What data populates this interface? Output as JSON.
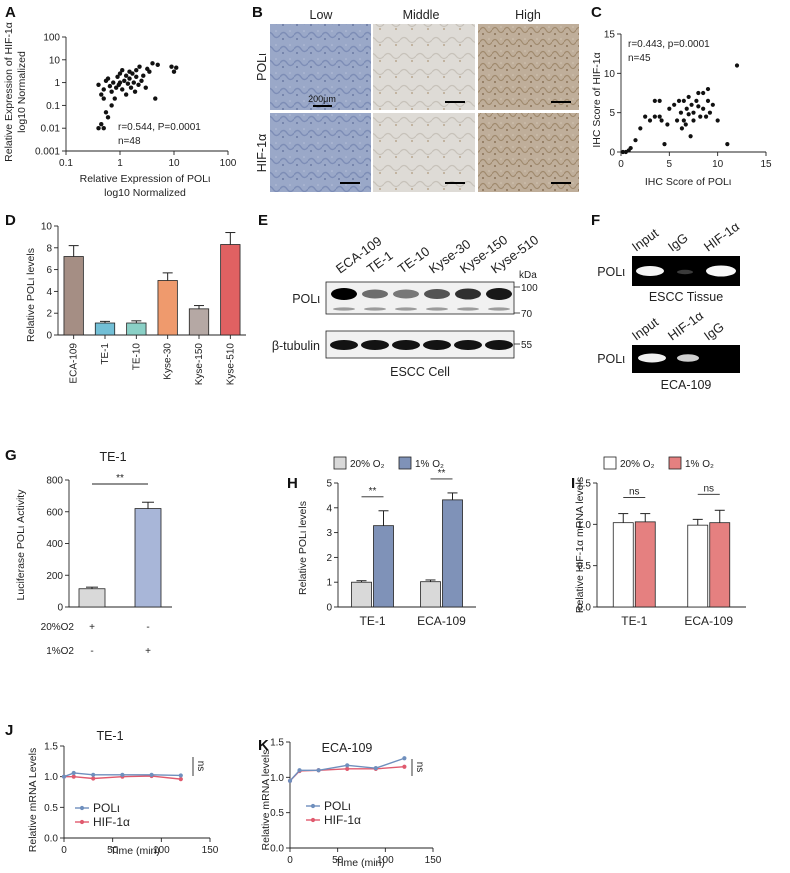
{
  "panels": {
    "A": {
      "label": "A",
      "annotation": [
        "r=0.544, P=0.0001",
        "n=48"
      ],
      "ylabel": [
        "Relative Expression of HIF-1α",
        "log10 Normalized"
      ],
      "xlabel": [
        "Relative Expression of POLι",
        "log10 Normalized"
      ]
    },
    "B": {
      "label": "B",
      "columns": [
        "Low",
        "Middle",
        "High"
      ],
      "rows": [
        "POLι",
        "HIF-1α"
      ],
      "scale_bar": "200μm"
    },
    "C": {
      "label": "C",
      "annotation": [
        "r=0.443, p=0.0001",
        "n=45"
      ],
      "ylabel": "IHC Score of HIF-1α",
      "xlabel": "IHC Score of POLι"
    },
    "D": {
      "label": "D",
      "ylabel": "Relative POLι levels"
    },
    "E": {
      "label": "E",
      "lanes": [
        "ECA-109",
        "TE-1",
        "TE-10",
        "Kyse-30",
        "Kyse-150",
        "Kyse-510"
      ],
      "kda_label": "kDa",
      "markers": [
        "100",
        "70",
        "55"
      ],
      "rows": [
        "POLι",
        "β-tubulin"
      ],
      "caption": "ESCC Cell"
    },
    "F": {
      "label": "F",
      "top_lanes": [
        "Input",
        "IgG",
        "HIF-1α"
      ],
      "top_row": "POLι",
      "top_caption": "ESCC Tissue",
      "bottom_lanes": [
        "Input",
        "HIF-1α",
        "IgG"
      ],
      "bottom_row": "POLι",
      "bottom_caption": "ECA-109"
    },
    "G": {
      "label": "G",
      "title": "TE-1",
      "ylabel": "Luciferase POLι Activity",
      "row_labels": [
        "20%O2",
        "1%O2"
      ],
      "signs": [
        [
          "+",
          "-"
        ],
        [
          "-",
          "+"
        ]
      ],
      "sig": "**"
    },
    "H": {
      "label": "H",
      "legend": [
        "20% O₂",
        "1% O₂"
      ],
      "ylabel": "Relative POLι levels",
      "sig": [
        "**",
        "**"
      ]
    },
    "I": {
      "label": "I",
      "legend": [
        "20% O₂",
        "1% O₂"
      ],
      "ylabel": "Relative HIF-1α mRNA levels",
      "sig": [
        "ns",
        "ns"
      ]
    },
    "J": {
      "label": "J",
      "title": "TE-1",
      "ylabel": "Relative mRNA Levels",
      "xlabel": "Time (min)",
      "sig": "ns"
    },
    "K": {
      "label": "K",
      "title": "ECA-109",
      "ylabel": "Relative mRNA levels",
      "xlabel": "Time (min)",
      "sig": "ns"
    }
  },
  "chart_data": [
    {
      "panel": "A",
      "type": "scatter",
      "log_scale": true,
      "xlim": [
        0.1,
        100
      ],
      "ylim": [
        0.001,
        100
      ],
      "xticks": [
        "0.1",
        "1",
        "10",
        "100"
      ],
      "yticks": [
        "0.001",
        "0.01",
        "0.1",
        "1",
        "10",
        "100"
      ],
      "points": [
        [
          0.4,
          0.01
        ],
        [
          0.45,
          0.015
        ],
        [
          0.5,
          0.01
        ],
        [
          0.55,
          0.05
        ],
        [
          0.6,
          0.03
        ],
        [
          0.5,
          0.2
        ],
        [
          0.4,
          0.8
        ],
        [
          0.45,
          0.3
        ],
        [
          0.5,
          0.5
        ],
        [
          0.55,
          1.2
        ],
        [
          0.6,
          1.5
        ],
        [
          0.65,
          0.7
        ],
        [
          0.7,
          0.4
        ],
        [
          0.75,
          1.0
        ],
        [
          0.8,
          0.2
        ],
        [
          0.85,
          0.6
        ],
        [
          0.9,
          1.8
        ],
        [
          0.95,
          0.8
        ],
        [
          1.0,
          2.5
        ],
        [
          1.0,
          1.0
        ],
        [
          1.1,
          3.5
        ],
        [
          1.1,
          0.5
        ],
        [
          1.2,
          1.2
        ],
        [
          1.3,
          0.3
        ],
        [
          1.3,
          2.0
        ],
        [
          1.4,
          0.9
        ],
        [
          1.5,
          3.0
        ],
        [
          1.5,
          1.5
        ],
        [
          1.6,
          0.6
        ],
        [
          1.7,
          2.5
        ],
        [
          1.8,
          1.0
        ],
        [
          1.9,
          0.4
        ],
        [
          2.0,
          3.5
        ],
        [
          2.0,
          1.8
        ],
        [
          2.2,
          0.8
        ],
        [
          2.3,
          5.0
        ],
        [
          2.5,
          1.2
        ],
        [
          2.7,
          2.0
        ],
        [
          3.0,
          0.6
        ],
        [
          3.2,
          4.0
        ],
        [
          3.5,
          3.0
        ],
        [
          4.0,
          7.0
        ],
        [
          4.5,
          0.2
        ],
        [
          5.0,
          6.0
        ],
        [
          0.7,
          0.1
        ],
        [
          9.0,
          5.0
        ],
        [
          10.0,
          3.0
        ],
        [
          11.0,
          4.5
        ]
      ]
    },
    {
      "panel": "C",
      "type": "scatter",
      "xlim": [
        0,
        15
      ],
      "ylim": [
        0,
        15
      ],
      "xticks": [
        "0",
        "5",
        "10",
        "15"
      ],
      "yticks": [
        "0",
        "5",
        "10",
        "15"
      ],
      "points": [
        [
          0.2,
          0
        ],
        [
          0.5,
          0
        ],
        [
          0.8,
          0.2
        ],
        [
          1,
          0.5
        ],
        [
          1.5,
          1.5
        ],
        [
          2,
          3
        ],
        [
          2.5,
          4.5
        ],
        [
          3,
          4
        ],
        [
          3.5,
          4.5
        ],
        [
          3.5,
          6.5
        ],
        [
          4,
          4.5
        ],
        [
          4,
          6.5
        ],
        [
          4.2,
          4
        ],
        [
          4.5,
          1
        ],
        [
          4.8,
          3.5
        ],
        [
          5,
          5.5
        ],
        [
          5.5,
          6
        ],
        [
          5.8,
          4
        ],
        [
          6,
          6.5
        ],
        [
          6.2,
          5
        ],
        [
          6.3,
          3
        ],
        [
          6.5,
          4
        ],
        [
          6.5,
          6.5
        ],
        [
          6.7,
          3.5
        ],
        [
          6.8,
          5.5
        ],
        [
          7,
          7
        ],
        [
          7,
          4.8
        ],
        [
          7.2,
          2
        ],
        [
          7.3,
          6
        ],
        [
          7.5,
          5
        ],
        [
          7.5,
          4
        ],
        [
          7.8,
          6.5
        ],
        [
          8,
          7.5
        ],
        [
          8,
          5.8
        ],
        [
          8.2,
          4.5
        ],
        [
          8.5,
          7.5
        ],
        [
          8.5,
          5.5
        ],
        [
          8.8,
          4.5
        ],
        [
          9,
          6.5
        ],
        [
          9,
          8
        ],
        [
          9.2,
          5
        ],
        [
          9.5,
          6
        ],
        [
          10,
          4
        ],
        [
          11,
          1
        ],
        [
          12,
          11
        ]
      ]
    },
    {
      "panel": "D",
      "type": "bar",
      "ylim": [
        0,
        10
      ],
      "yticks": [
        "0",
        "2",
        "4",
        "6",
        "8",
        "10"
      ],
      "categories": [
        "ECA-109",
        "TE-1",
        "TE-10",
        "Kyse-30",
        "Kyse-150",
        "Kyse-510"
      ],
      "values": [
        7.2,
        1.1,
        1.1,
        5.0,
        2.4,
        8.3
      ],
      "errors": [
        1.0,
        0.15,
        0.2,
        0.7,
        0.3,
        1.1
      ],
      "colors": [
        "#a58e84",
        "#72bfd6",
        "#8ad0c6",
        "#ef9a6d",
        "#b5a8a4",
        "#e06162"
      ]
    },
    {
      "panel": "G",
      "type": "bar",
      "ylim": [
        0,
        800
      ],
      "yticks": [
        "0",
        "200",
        "400",
        "600",
        "800"
      ],
      "values": [
        115,
        620
      ],
      "errors": [
        10,
        40
      ],
      "colors": [
        "#d9d9d9",
        "#a8b6d8"
      ]
    },
    {
      "panel": "H",
      "type": "bar",
      "ylim": [
        0,
        5
      ],
      "yticks": [
        "0",
        "1",
        "2",
        "3",
        "4",
        "5"
      ],
      "categories": [
        "TE-1",
        "ECA-109"
      ],
      "series": [
        {
          "name": "20% O₂",
          "values": [
            1.0,
            1.02
          ],
          "errors": [
            0.06,
            0.07
          ],
          "color": "#d9d9d9"
        },
        {
          "name": "1% O₂",
          "values": [
            3.28,
            4.32
          ],
          "errors": [
            0.6,
            0.28
          ],
          "color": "#7f92b8"
        }
      ]
    },
    {
      "panel": "I",
      "type": "bar",
      "ylim": [
        0,
        1.5
      ],
      "yticks": [
        "0.0",
        "0.5",
        "1.0",
        "1.5"
      ],
      "categories": [
        "TE-1",
        "ECA-109"
      ],
      "series": [
        {
          "name": "20% O₂",
          "values": [
            1.02,
            0.99
          ],
          "errors": [
            0.11,
            0.07
          ],
          "color": "#ffffff"
        },
        {
          "name": "1% O₂",
          "values": [
            1.03,
            1.02
          ],
          "errors": [
            0.1,
            0.15
          ],
          "color": "#e58080"
        }
      ]
    },
    {
      "panel": "J",
      "type": "line",
      "xlim": [
        0,
        150
      ],
      "ylim": [
        0,
        1.5
      ],
      "xticks": [
        "0",
        "50",
        "100",
        "150"
      ],
      "yticks": [
        "0.0",
        "0.5",
        "1.0",
        "1.5"
      ],
      "x": [
        0,
        10,
        30,
        60,
        90,
        120
      ],
      "series": [
        {
          "name": "POLι",
          "values": [
            1.0,
            1.06,
            1.03,
            1.03,
            1.03,
            1.02
          ],
          "color": "#6f8fbd"
        },
        {
          "name": "HIF-1α",
          "values": [
            1.0,
            1.0,
            0.97,
            1.0,
            1.01,
            0.96
          ],
          "color": "#e05a6e"
        }
      ]
    },
    {
      "panel": "K",
      "type": "line",
      "xlim": [
        0,
        150
      ],
      "ylim": [
        0,
        1.5
      ],
      "xticks": [
        "0",
        "50",
        "100",
        "150"
      ],
      "yticks": [
        "0.0",
        "0.5",
        "1.0",
        "1.5"
      ],
      "x": [
        0,
        10,
        30,
        60,
        90,
        120
      ],
      "series": [
        {
          "name": "POLι",
          "values": [
            0.95,
            1.1,
            1.1,
            1.17,
            1.13,
            1.27
          ],
          "color": "#6f8fbd"
        },
        {
          "name": "HIF-1α",
          "values": [
            0.95,
            1.09,
            1.1,
            1.12,
            1.12,
            1.15
          ],
          "color": "#e05a6e"
        }
      ]
    }
  ]
}
